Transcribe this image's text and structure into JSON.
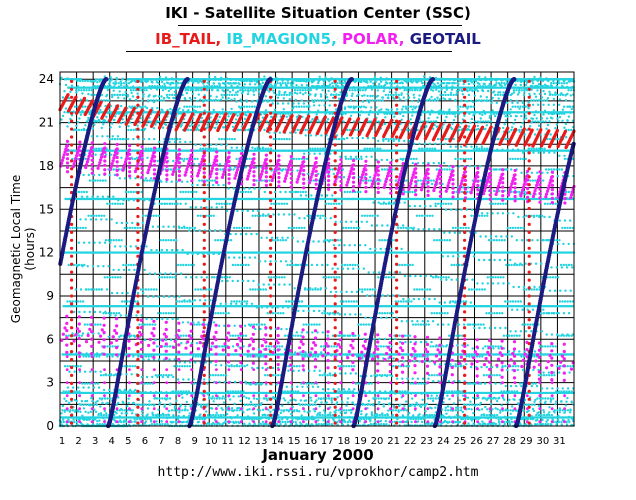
{
  "header": {
    "title": "IKI - Satellite Situation Center (SSC)",
    "legend": [
      {
        "label": "IB_TAIL",
        "color": "#e81a1a"
      },
      {
        "label": "IB_MAGION5",
        "color": "#22d3e0"
      },
      {
        "label": "POLAR",
        "color": "#f21ff0"
      },
      {
        "label": "GEOTAIL",
        "color": "#1a1a80"
      }
    ]
  },
  "footer": {
    "url": "http://www.iki.rssi.ru/vprokhor/camp2.htm"
  },
  "chart_data": {
    "type": "scatter",
    "title": "IKI - Satellite Situation Center (SSC)",
    "xlabel": "January   2000",
    "ylabel": "Geomagnetic  Local Time  (hours)",
    "x_tick_labels": [
      "1",
      "2",
      "3",
      "4",
      "5",
      "6",
      "7",
      "8",
      "9",
      "10",
      "11",
      "12",
      "13",
      "14",
      "15",
      "16",
      "17",
      "18",
      "19",
      "20",
      "21",
      "22",
      "23",
      "24",
      "25",
      "26",
      "27",
      "28",
      "29",
      "30",
      "31"
    ],
    "y_tick_labels": [
      "0",
      "3",
      "6",
      "9",
      "12",
      "15",
      "18",
      "21",
      "24"
    ],
    "xlim": [
      1,
      32
    ],
    "ylim": [
      0,
      24.5
    ],
    "grid": true,
    "series": [
      {
        "name": "IB_MAGION5",
        "color": "#22d3e0",
        "style": "dense dotted orbital tracks covering all local times, densest near 0-3 h and 22-24 h",
        "periods_days": [
          0.55,
          1.1,
          2.2
        ]
      },
      {
        "name": "POLAR",
        "color": "#f21ff0",
        "style": "dotted traces near 17-19 h and 3-7 h with vertical transits roughly every 0.75 days",
        "level_high": [
          18.7,
          18.5,
          18.2,
          18.0,
          17.8,
          17.6,
          17.4,
          17.2,
          17.0,
          16.8,
          16.6,
          16.5
        ],
        "level_low": [
          6.5,
          6.3,
          6.0,
          5.8,
          5.6,
          5.3,
          5.1,
          4.9,
          4.7,
          4.5
        ],
        "transit_period_days": 0.75
      },
      {
        "name": "IB_TAIL",
        "color": "#e81a1a",
        "style": "near 20-23 h with vertical transits roughly every 3.9 days",
        "level": [
          22.5,
          21.5,
          21.0,
          21.0,
          20.8,
          20.6,
          20.3,
          20.0,
          19.8
        ],
        "transit_days": [
          1.7,
          5.7,
          9.7,
          13.7,
          17.6,
          21.3,
          25.4,
          29.3
        ]
      },
      {
        "name": "GEOTAIL",
        "color": "#1a1a80",
        "style": "continuous S-shaped local time drift, wrapping from 24 h back to 0 h",
        "orbit_start_days": [
          -0.8,
          3.9,
          8.8,
          13.8,
          18.7,
          23.6,
          28.5
        ],
        "orbit_end_days": [
          3.8,
          8.7,
          13.7,
          18.6,
          23.5,
          28.4,
          33.3
        ]
      }
    ]
  }
}
